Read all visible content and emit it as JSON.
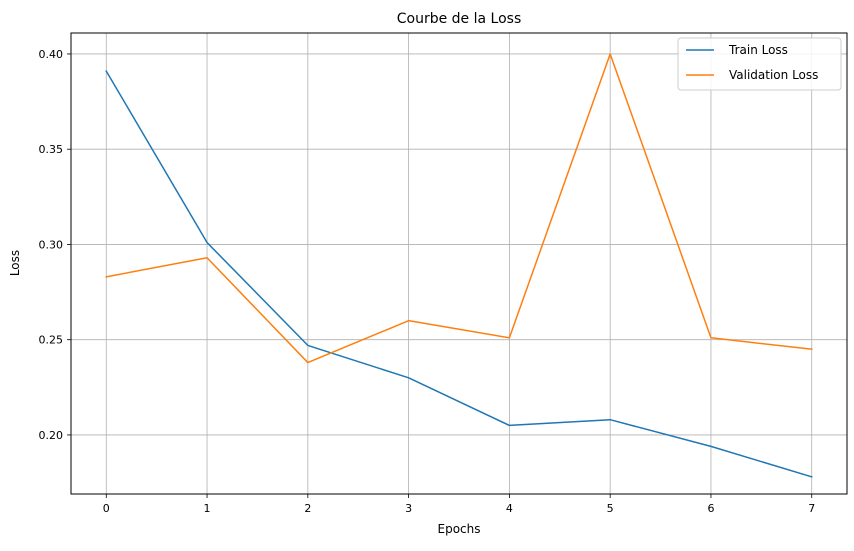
{
  "chart_data": {
    "type": "line",
    "title": "Courbe de la Loss",
    "xlabel": "Epochs",
    "ylabel": "Loss",
    "x": [
      0,
      1,
      2,
      3,
      4,
      5,
      6,
      7
    ],
    "xlim": [
      -0.35,
      7.35
    ],
    "ylim": [
      0.169,
      0.411
    ],
    "xticks": [
      0,
      1,
      2,
      3,
      4,
      5,
      6,
      7
    ],
    "yticks": [
      0.2,
      0.25,
      0.3,
      0.35,
      0.4
    ],
    "ytick_labels": [
      "0.20",
      "0.25",
      "0.30",
      "0.35",
      "0.40"
    ],
    "grid": true,
    "legend_position": "top-right",
    "series": [
      {
        "name": "Train Loss",
        "color": "#1f77b4",
        "values": [
          0.391,
          0.301,
          0.247,
          0.23,
          0.205,
          0.208,
          0.194,
          0.178
        ]
      },
      {
        "name": "Validation Loss",
        "color": "#ff7f0e",
        "values": [
          0.283,
          0.293,
          0.238,
          0.26,
          0.251,
          0.4,
          0.251,
          0.245
        ]
      }
    ]
  }
}
